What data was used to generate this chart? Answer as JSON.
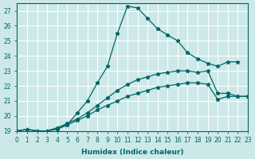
{
  "xlabel": "Humidex (Indice chaleur)",
  "ylabel": "",
  "bg_color": "#cde8e8",
  "grid_color": "#ffffff",
  "line_color": "#006666",
  "xlim": [
    0,
    23
  ],
  "ylim": [
    19,
    27.5
  ],
  "yticks": [
    19,
    20,
    21,
    22,
    23,
    24,
    25,
    26,
    27
  ],
  "xticks": [
    0,
    1,
    2,
    3,
    4,
    5,
    6,
    7,
    8,
    9,
    10,
    11,
    12,
    13,
    14,
    15,
    16,
    17,
    18,
    19,
    20,
    21,
    22,
    23
  ],
  "series": [
    {
      "x": [
        0,
        1,
        2,
        3,
        4,
        5,
        6,
        7,
        8,
        9,
        10,
        11,
        12,
        13,
        14,
        15,
        16,
        17,
        18,
        19,
        20,
        21,
        22
      ],
      "y": [
        19.0,
        19.1,
        19.0,
        19.0,
        19.1,
        19.4,
        20.2,
        21.0,
        22.2,
        23.3,
        25.5,
        27.3,
        27.2,
        26.5,
        25.8,
        25.4,
        25.0,
        24.2,
        23.8,
        23.5,
        23.3,
        23.6,
        23.6
      ]
    },
    {
      "x": [
        0,
        1,
        2,
        3,
        4,
        5,
        6,
        7,
        8,
        9,
        10,
        11,
        12,
        13,
        14,
        15,
        16,
        17,
        18,
        19,
        20,
        21,
        22,
        23
      ],
      "y": [
        19.0,
        19.1,
        19.0,
        19.0,
        19.2,
        19.5,
        19.8,
        20.2,
        20.7,
        21.2,
        21.7,
        22.1,
        22.4,
        22.6,
        22.8,
        22.9,
        23.0,
        23.0,
        22.9,
        23.0,
        21.5,
        21.5,
        21.3,
        21.3
      ]
    },
    {
      "x": [
        0,
        1,
        2,
        3,
        4,
        5,
        6,
        7,
        8,
        9,
        10,
        11,
        12,
        13,
        14,
        15,
        16,
        17,
        18,
        19,
        20,
        21,
        22,
        23
      ],
      "y": [
        19.0,
        19.1,
        19.0,
        19.0,
        19.2,
        19.4,
        19.7,
        20.0,
        20.4,
        20.7,
        21.0,
        21.3,
        21.5,
        21.7,
        21.9,
        22.0,
        22.1,
        22.2,
        22.2,
        22.1,
        21.1,
        21.3,
        21.3,
        21.3
      ]
    }
  ]
}
